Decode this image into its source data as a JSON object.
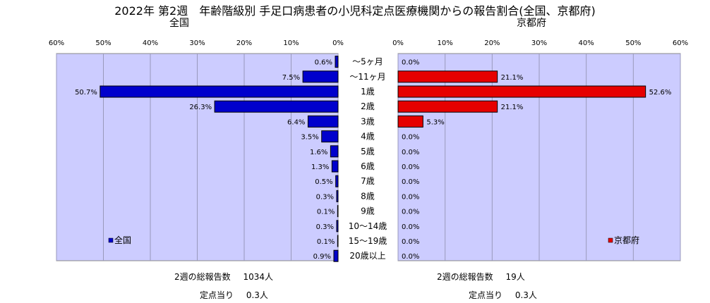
{
  "title": "2022年 第2週　年齢階級別 手足口病患者の小児科定点医療機関からの報告割合(全国、京都府)",
  "chart_data": [
    {
      "type": "bar",
      "orientation": "horizontal",
      "subtitle": "全国",
      "x_direction": "reversed",
      "categories": [
        "～5ヶ月",
        "～11ヶ月",
        "1歳",
        "2歳",
        "3歳",
        "4歳",
        "5歳",
        "6歳",
        "7歳",
        "8歳",
        "9歳",
        "10～14歳",
        "15～19歳",
        "20歳以上"
      ],
      "series": [
        {
          "name": "全国",
          "values": [
            0.6,
            7.5,
            50.7,
            26.3,
            6.4,
            3.5,
            1.6,
            1.3,
            0.5,
            0.3,
            0.1,
            0.3,
            0.1,
            0.9
          ]
        }
      ],
      "data_labels": [
        "0.6%",
        "7.5%",
        "50.7%",
        "26.3%",
        "6.4%",
        "3.5%",
        "1.6%",
        "1.3%",
        "0.5%",
        "0.3%",
        "0.1%",
        "0.3%",
        "0.1%",
        "0.9%"
      ],
      "xlim": [
        0,
        60
      ],
      "x_ticks": [
        "0%",
        "10%",
        "20%",
        "30%",
        "40%",
        "50%",
        "60%"
      ],
      "legend": "bottom-left",
      "color": "#0000cc"
    },
    {
      "type": "bar",
      "orientation": "horizontal",
      "subtitle": "京都府",
      "categories": [
        "～5ヶ月",
        "～11ヶ月",
        "1歳",
        "2歳",
        "3歳",
        "4歳",
        "5歳",
        "6歳",
        "7歳",
        "8歳",
        "9歳",
        "10～14歳",
        "15～19歳",
        "20歳以上"
      ],
      "series": [
        {
          "name": "京都府",
          "values": [
            0.0,
            21.1,
            52.6,
            21.1,
            5.3,
            0.0,
            0.0,
            0.0,
            0.0,
            0.0,
            0.0,
            0.0,
            0.0,
            0.0
          ]
        }
      ],
      "data_labels": [
        "0.0%",
        "21.1%",
        "52.6%",
        "21.1%",
        "5.3%",
        "0.0%",
        "0.0%",
        "0.0%",
        "0.0%",
        "0.0%",
        "0.0%",
        "0.0%",
        "0.0%",
        "0.0%"
      ],
      "xlim": [
        0,
        60
      ],
      "x_ticks": [
        "0%",
        "10%",
        "20%",
        "30%",
        "40%",
        "50%",
        "60%"
      ],
      "legend": "bottom-right",
      "color": "#e60000"
    }
  ],
  "footer": {
    "national": {
      "total_label": "2週の総報告数",
      "total_value": "1034人",
      "per_label": "定点当り",
      "per_value": "0.3人"
    },
    "kyoto": {
      "total_label": "2週の総報告数",
      "total_value": "19人",
      "per_label": "定点当り",
      "per_value": "0.3人"
    }
  }
}
